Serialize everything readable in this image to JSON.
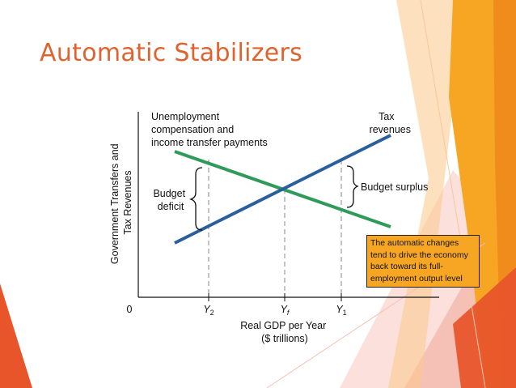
{
  "slide": {
    "title": "Automatic Stabilizers",
    "colors": {
      "title": "#e0632f",
      "accent_orange": "#f6a623",
      "accent_red": "#e8552b",
      "accent_pink": "#f4b8ae",
      "transfers_line": "#2f9a5a",
      "tax_line": "#2a5f9e",
      "callout_fill": "#f6a623"
    }
  },
  "diagram": {
    "y_axis_label": [
      "Government Transfers and",
      "Tax Revenues"
    ],
    "x_axis_label": [
      "Real GDP per Year",
      "($ trillions)"
    ],
    "origin_label": "0",
    "ticks": [
      "Y2",
      "Yf",
      "Y1"
    ],
    "transfers_label": [
      "Unemployment",
      "compensation and",
      "income transfer payments"
    ],
    "tax_label": [
      "Tax",
      "revenues"
    ],
    "deficit_label": [
      "Budget",
      "deficit"
    ],
    "surplus_label": "Budget surplus",
    "callout": "The automatic changes\ntend to drive the economy\nback toward its full-\nemployment output level"
  }
}
